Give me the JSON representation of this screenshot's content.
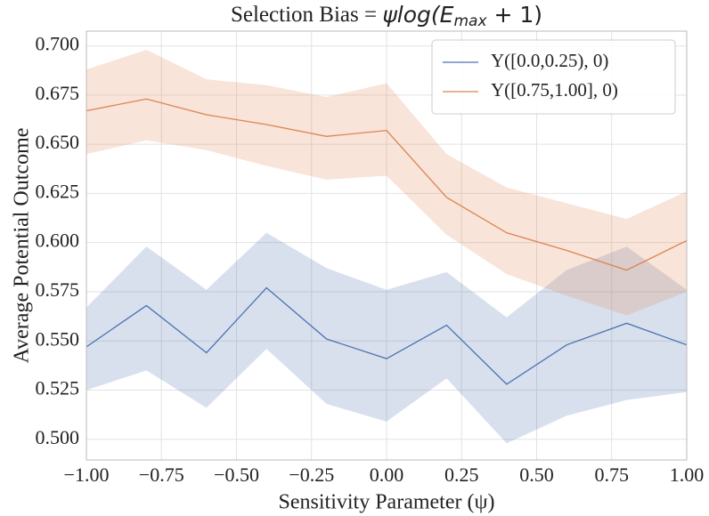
{
  "chart_data": {
    "type": "line",
    "title_parts": [
      "Selection Bias = ",
      "ψlog(E",
      "max",
      " + 1)"
    ],
    "xlabel": "Sensitivity Parameter (ψ)",
    "ylabel": "Average Potential Outcome",
    "x": [
      -1.0,
      -0.8,
      -0.6,
      -0.4,
      -0.2,
      0.0,
      0.2,
      0.4,
      0.6,
      0.8,
      1.0
    ],
    "series": [
      {
        "name": "Y([0.0,0.25), 0)",
        "color": "#4c72b0",
        "values": [
          0.547,
          0.568,
          0.544,
          0.577,
          0.551,
          0.541,
          0.558,
          0.528,
          0.548,
          0.559,
          0.548
        ],
        "upper": [
          0.567,
          0.598,
          0.576,
          0.605,
          0.587,
          0.576,
          0.585,
          0.562,
          0.586,
          0.598,
          0.576
        ],
        "lower": [
          0.525,
          0.535,
          0.516,
          0.546,
          0.518,
          0.509,
          0.531,
          0.498,
          0.512,
          0.52,
          0.524
        ]
      },
      {
        "name": "Y([0.75,1.00], 0)",
        "color": "#dd8452",
        "values": [
          0.667,
          0.673,
          0.665,
          0.66,
          0.654,
          0.657,
          0.623,
          0.605,
          0.596,
          0.586,
          0.601
        ],
        "upper": [
          0.688,
          0.698,
          0.683,
          0.68,
          0.674,
          0.681,
          0.645,
          0.628,
          0.62,
          0.612,
          0.626
        ],
        "lower": [
          0.645,
          0.652,
          0.647,
          0.639,
          0.632,
          0.634,
          0.604,
          0.584,
          0.573,
          0.563,
          0.575
        ]
      }
    ],
    "xlim": [
      -1.0,
      1.0
    ],
    "xticks": [
      {
        "value": -1.0,
        "label": "−1.00"
      },
      {
        "value": -0.75,
        "label": "−0.75"
      },
      {
        "value": -0.5,
        "label": "−0.50"
      },
      {
        "value": -0.25,
        "label": "−0.25"
      },
      {
        "value": 0.0,
        "label": "0.00"
      },
      {
        "value": 0.25,
        "label": "0.25"
      },
      {
        "value": 0.5,
        "label": "0.50"
      },
      {
        "value": 0.75,
        "label": "0.75"
      },
      {
        "value": 1.0,
        "label": "1.00"
      }
    ],
    "ylim": [
      0.4895,
      0.7075
    ],
    "yticks": [
      {
        "value": 0.5,
        "label": "0.500"
      },
      {
        "value": 0.525,
        "label": "0.525"
      },
      {
        "value": 0.55,
        "label": "0.550"
      },
      {
        "value": 0.575,
        "label": "0.575"
      },
      {
        "value": 0.6,
        "label": "0.600"
      },
      {
        "value": 0.625,
        "label": "0.625"
      },
      {
        "value": 0.65,
        "label": "0.650"
      },
      {
        "value": 0.675,
        "label": "0.675"
      },
      {
        "value": 0.7,
        "label": "0.700"
      }
    ],
    "grid": true,
    "legend": "upper right"
  }
}
